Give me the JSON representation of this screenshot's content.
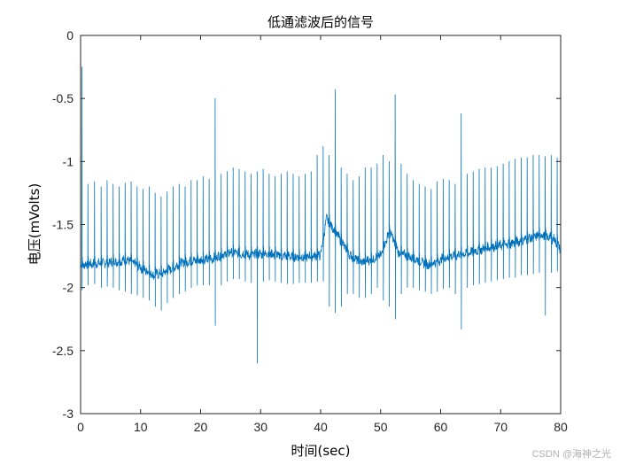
{
  "chart_data": {
    "type": "line",
    "title": "低通滤波后的信号",
    "xlabel": "时间(sec)",
    "ylabel": "电压(mVolts)",
    "xlim": [
      0,
      80
    ],
    "ylim": [
      -3,
      0
    ],
    "xticks": [
      0,
      10,
      20,
      30,
      40,
      50,
      60,
      70,
      80
    ],
    "yticks": [
      0,
      -0.5,
      -1,
      -1.5,
      -2,
      -2.5,
      -3
    ],
    "grid": false,
    "line_color": "#0072BD",
    "series": [
      {
        "baseline": [
          [
            0,
            -1.82
          ],
          [
            5,
            -1.8
          ],
          [
            8,
            -1.78
          ],
          [
            10,
            -1.84
          ],
          [
            12,
            -1.9
          ],
          [
            14,
            -1.88
          ],
          [
            17,
            -1.8
          ],
          [
            20,
            -1.78
          ],
          [
            22,
            -1.77
          ],
          [
            25,
            -1.72
          ],
          [
            28,
            -1.74
          ],
          [
            31,
            -1.73
          ],
          [
            34,
            -1.75
          ],
          [
            37,
            -1.76
          ],
          [
            40,
            -1.74
          ],
          [
            41,
            -1.45
          ],
          [
            43,
            -1.6
          ],
          [
            45,
            -1.75
          ],
          [
            47,
            -1.8
          ],
          [
            50,
            -1.75
          ],
          [
            51.5,
            -1.55
          ],
          [
            53,
            -1.72
          ],
          [
            55,
            -1.76
          ],
          [
            58,
            -1.82
          ],
          [
            60,
            -1.78
          ],
          [
            62,
            -1.75
          ],
          [
            65,
            -1.72
          ],
          [
            68,
            -1.68
          ],
          [
            71,
            -1.66
          ],
          [
            74,
            -1.62
          ],
          [
            77,
            -1.58
          ],
          [
            79,
            -1.62
          ],
          [
            80,
            -1.7
          ]
        ],
        "beats": [
          [
            0.2,
            -0.25,
            -2.02
          ],
          [
            1.2,
            -1.18,
            -1.98
          ],
          [
            2.3,
            -1.16,
            -1.97
          ],
          [
            3.4,
            -1.2,
            -2.0
          ],
          [
            4.4,
            -1.15,
            -1.99
          ],
          [
            5.4,
            -1.18,
            -2.0
          ],
          [
            6.4,
            -1.2,
            -2.02
          ],
          [
            7.4,
            -1.17,
            -2.03
          ],
          [
            8.4,
            -1.16,
            -2.05
          ],
          [
            9.4,
            -1.2,
            -2.06
          ],
          [
            10.4,
            -1.22,
            -2.08
          ],
          [
            11.4,
            -1.2,
            -2.1
          ],
          [
            12.4,
            -1.25,
            -2.15
          ],
          [
            13.4,
            -1.28,
            -2.18
          ],
          [
            14.4,
            -1.24,
            -2.12
          ],
          [
            15.4,
            -1.2,
            -2.08
          ],
          [
            16.4,
            -1.18,
            -2.05
          ],
          [
            17.4,
            -1.2,
            -2.03
          ],
          [
            18.4,
            -1.15,
            -2.0
          ],
          [
            19.4,
            -1.15,
            -1.98
          ],
          [
            20.4,
            -1.12,
            -1.98
          ],
          [
            21.4,
            -1.14,
            -1.98
          ],
          [
            22.4,
            -0.5,
            -2.3
          ],
          [
            23.4,
            -1.1,
            -1.98
          ],
          [
            24.4,
            -1.08,
            -1.95
          ],
          [
            25.4,
            -1.05,
            -1.93
          ],
          [
            26.4,
            -1.06,
            -1.93
          ],
          [
            27.4,
            -1.08,
            -1.95
          ],
          [
            28.4,
            -1.1,
            -1.96
          ],
          [
            29.4,
            -1.08,
            -2.6
          ],
          [
            30.4,
            -1.06,
            -1.95
          ],
          [
            31.4,
            -1.1,
            -1.94
          ],
          [
            32.4,
            -1.12,
            -1.95
          ],
          [
            33.4,
            -1.1,
            -1.96
          ],
          [
            34.4,
            -1.08,
            -1.97
          ],
          [
            35.4,
            -1.1,
            -1.97
          ],
          [
            36.4,
            -1.12,
            -1.96
          ],
          [
            37.4,
            -1.1,
            -1.96
          ],
          [
            38.4,
            -1.08,
            -1.96
          ],
          [
            39.4,
            -0.95,
            -1.95
          ],
          [
            40.4,
            -0.88,
            -1.95
          ],
          [
            41.4,
            -0.95,
            -2.15
          ],
          [
            42.4,
            -0.43,
            -2.2
          ],
          [
            43.4,
            -1.05,
            -2.15
          ],
          [
            44.4,
            -1.1,
            -2.05
          ],
          [
            45.4,
            -1.15,
            -2.05
          ],
          [
            46.4,
            -1.12,
            -2.08
          ],
          [
            47.4,
            -1.05,
            -2.08
          ],
          [
            48.4,
            -1.05,
            -2.05
          ],
          [
            49.4,
            -1.02,
            -2.0
          ],
          [
            50.4,
            -0.95,
            -2.1
          ],
          [
            51.4,
            -1.0,
            -2.15
          ],
          [
            52.4,
            -0.47,
            -2.25
          ],
          [
            53.4,
            -1.02,
            -2.05
          ],
          [
            54.4,
            -1.1,
            -2.0
          ],
          [
            55.4,
            -1.15,
            -2.0
          ],
          [
            56.4,
            -1.18,
            -2.02
          ],
          [
            57.4,
            -1.2,
            -2.03
          ],
          [
            58.4,
            -1.22,
            -2.05
          ],
          [
            59.4,
            -1.16,
            -2.03
          ],
          [
            60.4,
            -1.14,
            -2.01
          ],
          [
            61.4,
            -1.15,
            -2.0
          ],
          [
            62.4,
            -1.18,
            -2.05
          ],
          [
            63.4,
            -0.62,
            -2.33
          ],
          [
            64.4,
            -1.1,
            -2.0
          ],
          [
            65.4,
            -1.08,
            -1.98
          ],
          [
            66.4,
            -1.06,
            -1.97
          ],
          [
            67.4,
            -1.05,
            -1.96
          ],
          [
            68.4,
            -1.05,
            -1.95
          ],
          [
            69.4,
            -1.04,
            -1.94
          ],
          [
            70.4,
            -1.02,
            -1.93
          ],
          [
            71.4,
            -1.0,
            -1.92
          ],
          [
            72.4,
            -0.98,
            -1.92
          ],
          [
            73.4,
            -0.97,
            -1.9
          ],
          [
            74.4,
            -0.97,
            -1.9
          ],
          [
            75.4,
            -0.95,
            -1.89
          ],
          [
            76.4,
            -0.95,
            -1.88
          ],
          [
            77.4,
            -0.96,
            -2.22
          ],
          [
            78.4,
            -0.95,
            -1.88
          ],
          [
            79.4,
            -0.97,
            -1.87
          ]
        ]
      }
    ]
  },
  "watermark": "CSDN @海神之光"
}
